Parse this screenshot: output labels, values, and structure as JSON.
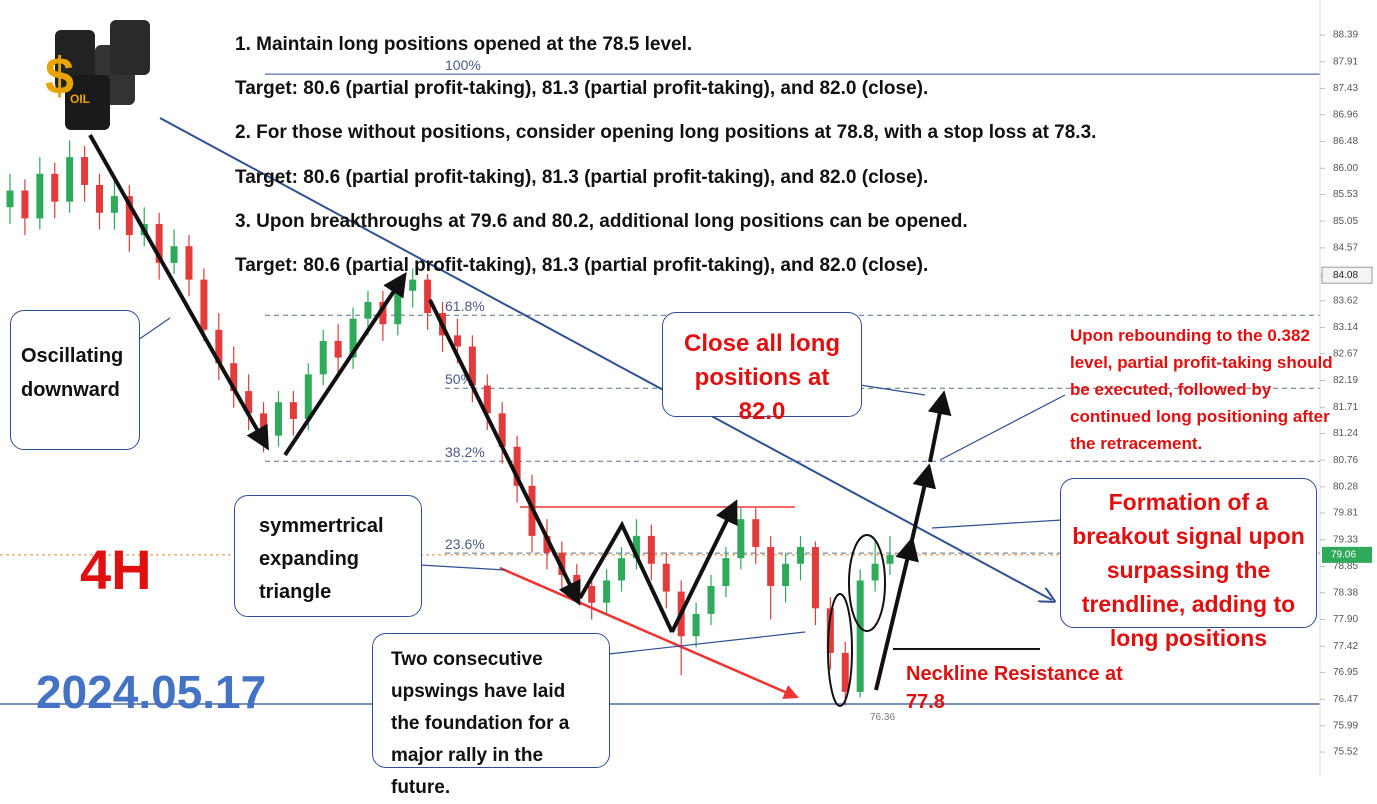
{
  "chart_data": {
    "type": "candlestick",
    "ylim": [
      75.09,
      89.02
    ],
    "yticks": [
      88.39,
      87.91,
      87.43,
      86.96,
      86.48,
      {
        "value": 86,
        "label": "86.00"
      },
      85.53,
      85.05,
      84.57,
      84.08,
      83.62,
      83.14,
      82.67,
      82.19,
      81.71,
      81.24,
      80.76,
      80.28,
      79.81,
      79.33,
      78.85,
      78.38,
      {
        "value": 77.9,
        "label": "77.90"
      },
      77.42,
      76.95,
      76.47,
      75.99,
      75.52
    ],
    "highlighted_tick": 84.08,
    "current_price": 79.06,
    "low_label": 76.36,
    "up_color": "#2eaa5a",
    "down_color": "#e23b3b",
    "fib_levels": [
      {
        "label": "100%",
        "value": 87.69
      },
      {
        "label": "61.8%",
        "value": 83.36
      },
      {
        "label": "50%",
        "value": 82.05
      },
      {
        "label": "38.2%",
        "value": 80.74
      },
      {
        "label": "23.6%",
        "value": 79.09
      }
    ],
    "ohlc": [
      [
        85.3,
        85.9,
        85.0,
        85.6
      ],
      [
        85.6,
        85.8,
        84.8,
        85.1
      ],
      [
        85.1,
        86.2,
        84.9,
        85.9
      ],
      [
        85.9,
        86.1,
        85.1,
        85.4
      ],
      [
        85.4,
        86.5,
        85.2,
        86.2
      ],
      [
        86.2,
        86.4,
        85.4,
        85.7
      ],
      [
        85.7,
        85.9,
        84.9,
        85.2
      ],
      [
        85.2,
        85.8,
        84.9,
        85.5
      ],
      [
        85.5,
        85.7,
        84.5,
        84.8
      ],
      [
        84.8,
        85.3,
        84.6,
        85.0
      ],
      [
        85.0,
        85.2,
        84.0,
        84.3
      ],
      [
        84.3,
        84.9,
        84.1,
        84.6
      ],
      [
        84.6,
        84.8,
        83.7,
        84.0
      ],
      [
        84.0,
        84.2,
        82.9,
        83.1
      ],
      [
        83.1,
        83.4,
        82.2,
        82.5
      ],
      [
        82.5,
        82.8,
        81.7,
        82.0
      ],
      [
        82.0,
        82.3,
        81.3,
        81.6
      ],
      [
        81.6,
        81.8,
        80.9,
        81.2
      ],
      [
        81.2,
        82.0,
        81.0,
        81.8
      ],
      [
        81.8,
        82.0,
        81.2,
        81.5
      ],
      [
        81.5,
        82.5,
        81.3,
        82.3
      ],
      [
        82.3,
        83.1,
        82.1,
        82.9
      ],
      [
        82.9,
        83.2,
        82.3,
        82.6
      ],
      [
        82.6,
        83.5,
        82.4,
        83.3
      ],
      [
        83.3,
        83.8,
        83.0,
        83.6
      ],
      [
        83.6,
        83.8,
        82.9,
        83.2
      ],
      [
        83.2,
        84.0,
        83.0,
        83.8
      ],
      [
        83.8,
        84.2,
        83.5,
        84.0
      ],
      [
        84.0,
        84.1,
        83.1,
        83.4
      ],
      [
        83.4,
        83.6,
        82.7,
        83.0
      ],
      [
        83.0,
        83.3,
        82.5,
        82.8
      ],
      [
        82.8,
        83.0,
        81.8,
        82.1
      ],
      [
        82.1,
        82.3,
        81.3,
        81.6
      ],
      [
        81.6,
        81.8,
        80.7,
        81.0
      ],
      [
        81.0,
        81.2,
        80.0,
        80.3
      ],
      [
        80.3,
        80.5,
        79.1,
        79.4
      ],
      [
        79.4,
        79.7,
        78.8,
        79.1
      ],
      [
        79.1,
        79.3,
        78.4,
        78.7
      ],
      [
        78.7,
        78.9,
        78.2,
        78.5
      ],
      [
        78.5,
        78.7,
        77.9,
        78.2
      ],
      [
        78.2,
        78.8,
        78.0,
        78.6
      ],
      [
        78.6,
        79.2,
        78.4,
        79.0
      ],
      [
        79.0,
        79.7,
        78.8,
        79.4
      ],
      [
        79.4,
        79.6,
        78.6,
        78.9
      ],
      [
        78.9,
        79.1,
        78.1,
        78.4
      ],
      [
        78.4,
        78.6,
        76.9,
        77.6
      ],
      [
        77.6,
        78.2,
        77.4,
        78.0
      ],
      [
        78.0,
        78.7,
        77.8,
        78.5
      ],
      [
        78.5,
        79.2,
        78.3,
        79.0
      ],
      [
        79.0,
        79.9,
        78.8,
        79.7
      ],
      [
        79.7,
        79.9,
        78.9,
        79.2
      ],
      [
        79.2,
        79.4,
        77.9,
        78.5
      ],
      [
        78.5,
        79.1,
        78.2,
        78.9
      ],
      [
        78.9,
        79.4,
        78.6,
        79.2
      ],
      [
        79.2,
        79.3,
        77.8,
        78.1
      ],
      [
        78.1,
        78.3,
        77.0,
        77.3
      ],
      [
        77.3,
        77.5,
        76.36,
        76.6
      ],
      [
        76.6,
        78.8,
        76.5,
        78.6
      ],
      [
        78.6,
        79.3,
        78.4,
        78.9
      ],
      [
        78.9,
        79.4,
        78.7,
        79.06
      ]
    ]
  },
  "timeframe": "4H",
  "date": "2024.05.17",
  "instructions": [
    "1. Maintain long positions opened at the 78.5 level.",
    "Target: 80.6 (partial profit-taking), 81.3 (partial profit-taking), and 82.0 (close).",
    "2. For those without positions, consider opening long positions at 78.8, with a stop loss at 78.3.",
    " Target: 80.6 (partial profit-taking), 81.3 (partial profit-taking), and 82.0 (close).",
    "3. Upon breakthroughs at 79.6 and 80.2, additional long positions can be opened.",
    "Target:  80.6 (partial profit-taking), 81.3 (partial profit-taking), and 82.0 (close)."
  ],
  "annotations": {
    "oscillating": "Oscillating downward",
    "close_all": "Close all long positions at 82.0",
    "rebound": "Upon rebounding to the 0.382 level, partial profit-taking should be executed, followed by continued long positioning after the retracement.",
    "breakout": "Formation of a breakout signal upon surpassing the trendline, adding to long positions",
    "triangle": "symmertrical expanding triangle",
    "upswings": "Two consecutive upswings have laid the foundation for a major rally in the future.",
    "neckline": "Neckline Resistance at 77.8"
  }
}
